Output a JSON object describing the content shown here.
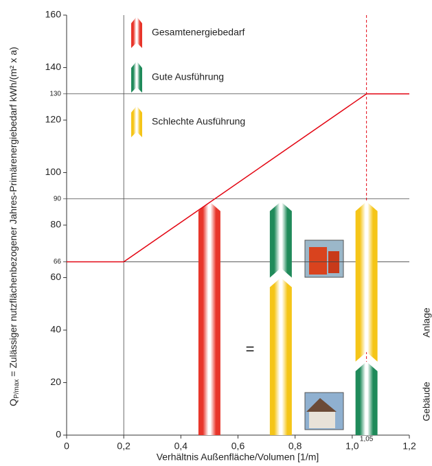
{
  "chart_data": {
    "type": "bar",
    "xlabel": "Verhältnis Außenfläche/Volumen [1/m]",
    "ylabel_symbol": "Q",
    "ylabel_sub": "P/max",
    "ylabel_rest": " = Zulässiger nutzflächenbezogener Jahres-Primärenergiebedarf kWh/(m² x a)",
    "xlim": [
      0,
      1.2
    ],
    "ylim": [
      0,
      160
    ],
    "xticks": [
      0,
      {
        "value": 0.2,
        "label": "0,2"
      },
      {
        "value": 0.4,
        "label": "0,4"
      },
      {
        "value": 0.6,
        "label": "0,6"
      },
      {
        "value": 0.8,
        "label": "0,8"
      },
      {
        "value": 1.0,
        "label": "1,0"
      },
      {
        "value": 1.2,
        "label": "1,2"
      }
    ],
    "yticks": [
      0,
      20,
      40,
      60,
      80,
      100,
      120,
      140,
      160
    ],
    "marked_yticks": [
      66,
      90,
      130
    ],
    "marked_x": {
      "value": 1.05,
      "label": "1,05",
      "color": "#e30613"
    },
    "line": {
      "color": "#e30613",
      "x": [
        0,
        0.2,
        1.05,
        1.2
      ],
      "values": [
        66,
        66,
        130,
        130
      ]
    },
    "series": [
      {
        "name": "Gesamtenergiebedarf",
        "color": "#e8352a"
      },
      {
        "name": "Gute Ausführung",
        "color": "#1f8a5a"
      },
      {
        "name": "Schlechte Ausführung",
        "color": "#f5c518"
      }
    ],
    "stacks": [
      {
        "x": 0.5,
        "segments": [
          {
            "series": 0,
            "value": 89
          }
        ]
      },
      {
        "x": 0.75,
        "segments": [
          {
            "series": 2,
            "value": 60
          },
          {
            "series": 1,
            "value": 29
          }
        ]
      },
      {
        "x": 1.05,
        "segments": [
          {
            "series": 1,
            "value": 28
          },
          {
            "series": 2,
            "value": 61
          }
        ]
      }
    ],
    "equals": "=",
    "side_labels": [
      "Anlage",
      "Gebäude"
    ]
  }
}
